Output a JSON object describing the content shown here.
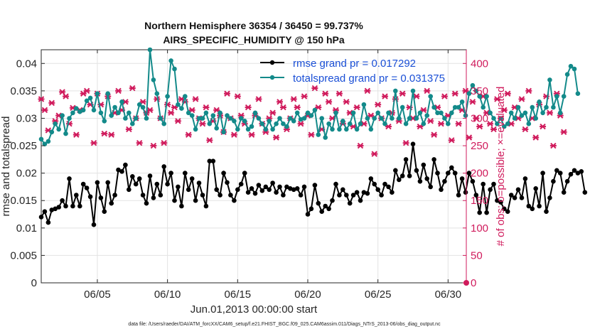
{
  "chart_data": {
    "type": "line",
    "title_line1": "Northern Hemisphere 36354 / 36450 = 99.737%",
    "title_line2": "AIRS_SPECIFIC_HUMIDITY @ 150 hPa",
    "xlabel": "Jun.01,2013 00:00:00 start",
    "ylabel_left": "rmse and totalspread",
    "ylabel_right": "# of obs: o=possible; ×=evaluated",
    "footnote": "data file: /Users/raeder/DAI/ATM_forcXX/CAM6_setup/f.e21.FHIST_BGC.f09_025.CAM6assim.011/Diags_NTrS_2013-06/obs_diag_output.nc",
    "xlim": [
      1.0,
      31.3
    ],
    "ylim_left": [
      0,
      0.0425
    ],
    "ylim_right": [
      0,
      425
    ],
    "x_ticks": [
      5,
      10,
      15,
      20,
      25,
      30
    ],
    "x_tick_labels": [
      "06/05",
      "06/10",
      "06/15",
      "06/20",
      "06/25",
      "06/30"
    ],
    "y_ticks_left": [
      0,
      0.005,
      0.01,
      0.015,
      0.02,
      0.025,
      0.03,
      0.035,
      0.04
    ],
    "y_tick_labels_left": [
      "0",
      "0.005",
      "0.01",
      "0.015",
      "0.02",
      "0.025",
      "0.03",
      "0.035",
      "0.04"
    ],
    "y_ticks_right": [
      0,
      50,
      100,
      150,
      200,
      250,
      300,
      350,
      400
    ],
    "y_tick_labels_right": [
      "0",
      "50",
      "100",
      "150",
      "200",
      "250",
      "300",
      "350",
      "400"
    ],
    "grid": true,
    "legend": [
      {
        "label": "rmse grand pr = 0.017292",
        "color": "#000000"
      },
      {
        "label": "totalspread grand pr = 0.031375",
        "color": "#138a8a"
      }
    ],
    "series": [
      {
        "name": "rmse",
        "axis": "left",
        "color": "#000000",
        "x_start": 1.0,
        "x_step": 0.25,
        "values": [
          0.012,
          0.013,
          0.011,
          0.0133,
          0.0135,
          0.0138,
          0.015,
          0.014,
          0.019,
          0.014,
          0.016,
          0.014,
          0.018,
          0.0173,
          0.0157,
          0.0106,
          0.0183,
          0.0155,
          0.013,
          0.0183,
          0.0145,
          0.016,
          0.0206,
          0.0203,
          0.0215,
          0.017,
          0.0194,
          0.018,
          0.019,
          0.016,
          0.0145,
          0.0195,
          0.0155,
          0.018,
          0.016,
          0.0212,
          0.018,
          0.02,
          0.015,
          0.0175,
          0.014,
          0.02,
          0.017,
          0.019,
          0.015,
          0.0182,
          0.016,
          0.014,
          0.0222,
          0.0222,
          0.017,
          0.016,
          0.02,
          0.0183,
          0.016,
          0.015,
          0.017,
          0.018,
          0.02,
          0.0165,
          0.0172,
          0.0163,
          0.0178,
          0.0168,
          0.0175,
          0.017,
          0.0182,
          0.0165,
          0.0175,
          0.016,
          0.0175,
          0.0172,
          0.017,
          0.0172,
          0.016,
          0.0175,
          0.0125,
          0.0135,
          0.0178,
          0.0145,
          0.013,
          0.014,
          0.0135,
          0.015,
          0.018,
          0.016,
          0.017,
          0.016,
          0.0145,
          0.016,
          0.0165,
          0.015,
          0.0165,
          0.0163,
          0.019,
          0.018,
          0.017,
          0.016,
          0.018,
          0.0175,
          0.0165,
          0.0205,
          0.0188,
          0.0195,
          0.0225,
          0.0195,
          0.0253,
          0.0205,
          0.0185,
          0.0215,
          0.019,
          0.0175,
          0.0225,
          0.02,
          0.017,
          0.0185,
          0.02,
          0.021,
          0.02,
          0.016,
          0.019,
          0.0165,
          0.02,
          0.0185,
          0.016,
          0.0128,
          0.018,
          0.0128,
          0.017,
          0.018,
          0.015,
          0.0147,
          0.0135,
          0.013,
          0.016,
          0.0155,
          0.017,
          0.0155,
          0.019,
          0.014,
          0.0135,
          0.0172,
          0.014,
          0.02,
          0.013,
          0.0155,
          0.0185,
          0.0205,
          0.02,
          0.0165,
          0.0185,
          0.0198,
          0.0205,
          0.02,
          0.0203,
          0.0165
        ]
      },
      {
        "name": "totalspread",
        "axis": "left",
        "color": "#138a8a",
        "x_start": 1.0,
        "x_step": 0.25,
        "values": [
          0.0262,
          0.0253,
          0.0258,
          0.0275,
          0.029,
          0.028,
          0.0305,
          0.0272,
          0.03,
          0.031,
          0.0318,
          0.0312,
          0.0315,
          0.0332,
          0.0337,
          0.0315,
          0.0345,
          0.031,
          0.0295,
          0.0345,
          0.0305,
          0.032,
          0.031,
          0.033,
          0.03,
          0.031,
          0.029,
          0.03,
          0.0325,
          0.032,
          0.03,
          0.0425,
          0.037,
          0.0345,
          0.03,
          0.029,
          0.034,
          0.0405,
          0.039,
          0.0325,
          0.0318,
          0.034,
          0.031,
          0.0305,
          0.028,
          0.03,
          0.03,
          0.031,
          0.029,
          0.0305,
          0.0282,
          0.031,
          0.0275,
          0.0305,
          0.03,
          0.0295,
          0.028,
          0.03,
          0.0295,
          0.028,
          0.0285,
          0.031,
          0.03,
          0.029,
          0.028,
          0.0295,
          0.028,
          0.029,
          0.03,
          0.029,
          0.0285,
          0.03,
          0.0295,
          0.031,
          0.0298,
          0.03,
          0.031,
          0.0305,
          0.0315,
          0.027,
          0.03,
          0.0265,
          0.029,
          0.028,
          0.031,
          0.028,
          0.0295,
          0.028,
          0.029,
          0.031,
          0.028,
          0.029,
          0.0325,
          0.03,
          0.028,
          0.03,
          0.031,
          0.03,
          0.029,
          0.031,
          0.03,
          0.035,
          0.03,
          0.032,
          0.029,
          0.03,
          0.035,
          0.03,
          0.031,
          0.029,
          0.0305,
          0.034,
          0.032,
          0.031,
          0.031,
          0.03,
          0.029,
          0.031,
          0.032,
          0.032,
          0.033,
          0.0305,
          0.0345,
          0.036,
          0.035,
          0.034,
          0.032,
          0.034,
          0.031,
          0.03,
          0.029,
          0.03,
          0.0285,
          0.029,
          0.031,
          0.03,
          0.032,
          0.0305,
          0.031,
          0.029,
          0.032,
          0.03,
          0.033,
          0.031,
          0.032,
          0.037,
          0.032,
          0.034,
          0.031,
          0.034,
          0.038,
          0.0395,
          0.039,
          0.0345
        ]
      },
      {
        "name": "obs possible / evaluated",
        "axis": "right",
        "color": "#d01b5c",
        "x_start": 1.0,
        "x_step": 0.25,
        "values": [
          335,
          315,
          278,
          328,
          295,
          305,
          348,
          340,
          290,
          319,
          270,
          315,
          345,
          350,
          325,
          255,
          345,
          325,
          272,
          340,
          270,
          310,
          350,
          315,
          330,
          280,
          355,
          300,
          255,
          330,
          310,
          315,
          250,
          335,
          300,
          255,
          325,
          310,
          320,
          295,
          335,
          330,
          270,
          315,
          335,
          300,
          290,
          320,
          260,
          295,
          315,
          305,
          275,
          345,
          300,
          270,
          340,
          305,
          290,
          320,
          270,
          305,
          335,
          290,
          275,
          300,
          310,
          265,
          330,
          320,
          280,
          300,
          335,
          320,
          290,
          340,
          305,
          270,
          355,
          320,
          280,
          345,
          330,
          300,
          315,
          345,
          290,
          330,
          310,
          285,
          320,
          250,
          290,
          350,
          305,
          235,
          325,
          300,
          340,
          285,
          310,
          335,
          295,
          345,
          255,
          320,
          300,
          340,
          285,
          315,
          350,
          295,
          270,
          320,
          290,
          340,
          305,
          260,
          345,
          290,
          315,
          350,
          265,
          330,
          300,
          285,
          340,
          310,
          290,
          280,
          335,
          300,
          315,
          345,
          290,
          320,
          300,
          335,
          280,
          350,
          300,
          265,
          325,
          285,
          340,
          310,
          250,
          345,
          305,
          275
        ]
      }
    ]
  }
}
